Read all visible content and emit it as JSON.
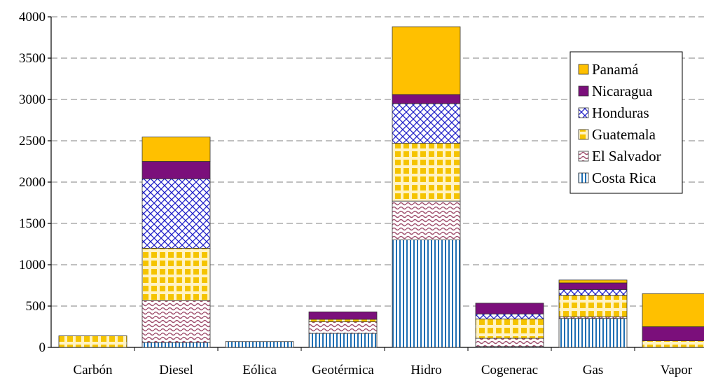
{
  "chart_data": {
    "type": "bar",
    "stacked": true,
    "title": "",
    "xlabel": "",
    "ylabel": "",
    "ylim": [
      0,
      4000
    ],
    "yticks": [
      0,
      500,
      1000,
      1500,
      2000,
      2500,
      3000,
      3500,
      4000
    ],
    "grid": true,
    "legend_position": "top-right",
    "categories": [
      "Carbón",
      "Diesel",
      "Eólica",
      "Geotérmica",
      "Hidro",
      "Cogenerac",
      "Gas",
      "Vapor"
    ],
    "series": [
      {
        "name": "Costa Rica",
        "color": "#1f6fb4",
        "pattern": "vertical-lines",
        "values": [
          0,
          60,
          70,
          170,
          1300,
          10,
          350,
          0
        ]
      },
      {
        "name": "El Salvador",
        "color": "#a0506e",
        "pattern": "waves",
        "values": [
          0,
          505,
          0,
          140,
          470,
          100,
          20,
          0
        ]
      },
      {
        "name": "Guatemala",
        "color": "#f5c400",
        "pattern": "checker",
        "values": [
          140,
          635,
          0,
          30,
          700,
          235,
          260,
          80
        ]
      },
      {
        "name": "Honduras",
        "color": "#2020c8",
        "pattern": "crosshatch",
        "values": [
          0,
          840,
          0,
          0,
          480,
          60,
          70,
          0
        ]
      },
      {
        "name": "Nicaragua",
        "color": "#7b0f7b",
        "pattern": "solid",
        "values": [
          0,
          210,
          0,
          90,
          110,
          130,
          80,
          170
        ]
      },
      {
        "name": "Panamá",
        "color": "#ffc000",
        "pattern": "solid",
        "values": [
          0,
          295,
          0,
          0,
          820,
          0,
          35,
          400
        ]
      }
    ]
  }
}
